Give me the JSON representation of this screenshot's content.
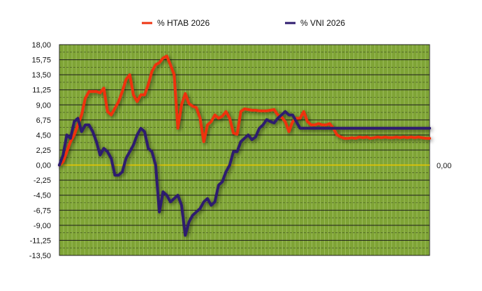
{
  "chart_data": {
    "type": "line",
    "legend": {
      "placement": "top",
      "items": [
        {
          "label": "% HTAB 2026",
          "color": "#ee3311"
        },
        {
          "label": "% VNI 2026",
          "color": "#2d1a6e"
        }
      ]
    },
    "y_ticks": [
      "18,00",
      "15,75",
      "13,50",
      "11,25",
      "9,00",
      "6,75",
      "4,50",
      "2,25",
      "0,00",
      "-2,25",
      "-4,50",
      "-6,75",
      "-9,00",
      "-11,25",
      "-13,50"
    ],
    "y_values": [
      18,
      15.75,
      13.5,
      11.25,
      9,
      6.75,
      4.5,
      2.25,
      0,
      -2.25,
      -4.5,
      -6.75,
      -9,
      -11.25,
      -13.5
    ],
    "ylim": [
      -13.5,
      18
    ],
    "xlim": [
      0,
      100
    ],
    "right_label": "0,00",
    "grid": true,
    "plot_background": "#7fa436",
    "zero_line_color": "#e8c800",
    "series": [
      {
        "name": "% HTAB 2026",
        "color": "#ee3311",
        "x": [
          0,
          1,
          2,
          3,
          4,
          5,
          6,
          7,
          8,
          9,
          10,
          11,
          12,
          13,
          14,
          15,
          16,
          17,
          18,
          19,
          20,
          21,
          22,
          23,
          24,
          25,
          26,
          27,
          28,
          29,
          30,
          31,
          32,
          33,
          34,
          35,
          36,
          37,
          38,
          39,
          40,
          41,
          42,
          43,
          44,
          45,
          46,
          47,
          48,
          49,
          50,
          51,
          52,
          53,
          54,
          55,
          56,
          57,
          58,
          59,
          60,
          61,
          62,
          63,
          64,
          65,
          66,
          67,
          68,
          69,
          70,
          71,
          72,
          73,
          74,
          75,
          76,
          77,
          78,
          79,
          80,
          81,
          82,
          83,
          84,
          85,
          86,
          87,
          88,
          89,
          90,
          91,
          92,
          93,
          94,
          95,
          96,
          97,
          98,
          99,
          100
        ],
        "y": [
          0,
          0.5,
          2,
          3.5,
          4.5,
          6,
          7.5,
          10,
          11,
          11,
          11,
          10.8,
          11.5,
          8,
          7.5,
          8.5,
          9.5,
          11,
          12.8,
          13.5,
          10.5,
          9.5,
          10.5,
          10.5,
          12,
          14,
          15,
          15.3,
          16,
          16.3,
          15,
          13.5,
          5.5,
          9,
          10.7,
          9.2,
          8.8,
          8.6,
          7,
          3.5,
          6,
          6.5,
          7.5,
          7,
          7.3,
          8,
          7,
          4.8,
          4.6,
          8,
          8.4,
          8.3,
          8.2,
          8.2,
          8.1,
          8.1,
          8.1,
          8.2,
          8.3,
          7.5,
          7.2,
          6.5,
          5,
          6.5,
          7,
          7,
          8,
          6.5,
          6,
          6,
          6.2,
          6,
          6,
          6.2,
          5.5,
          4.5,
          4.2,
          4,
          4,
          4.1,
          4,
          4.2,
          4.1,
          4.2,
          4,
          4.1,
          4.2,
          4.1,
          4.2,
          4.1,
          4.1,
          4.2,
          4.1,
          4.2,
          4.1,
          4.2,
          4.1,
          4.2,
          4.1,
          4,
          4
        ]
      },
      {
        "name": "% VNI 2026",
        "color": "#2d1a6e",
        "x": [
          0,
          1,
          2,
          3,
          4,
          5,
          6,
          7,
          8,
          9,
          10,
          11,
          12,
          13,
          14,
          15,
          16,
          17,
          18,
          19,
          20,
          21,
          22,
          23,
          24,
          25,
          26,
          27,
          28,
          29,
          30,
          31,
          32,
          33,
          34,
          35,
          36,
          37,
          38,
          39,
          40,
          41,
          42,
          43,
          44,
          45,
          46,
          47,
          48,
          49,
          50,
          51,
          52,
          53,
          54,
          55,
          56,
          57,
          58,
          59,
          60,
          61,
          62,
          63,
          64,
          65,
          66,
          67,
          68,
          69,
          70,
          71,
          72,
          73,
          74,
          75,
          76,
          77,
          78,
          79,
          80,
          81,
          82,
          83,
          84,
          85,
          86,
          87,
          88,
          89,
          90,
          91,
          92,
          93,
          94,
          95,
          96,
          97,
          98,
          99,
          100
        ],
        "y": [
          0,
          1.5,
          4.5,
          4,
          6.5,
          7,
          5,
          6,
          6,
          5,
          3.5,
          1.5,
          2.5,
          2,
          1,
          -1.5,
          -1.5,
          -1,
          1,
          2,
          3,
          4.5,
          5.5,
          5,
          2.5,
          2,
          0,
          -7,
          -4,
          -4.5,
          -5.5,
          -5,
          -4.5,
          -6,
          -10.5,
          -8.5,
          -7.5,
          -7,
          -6.5,
          -5.5,
          -5,
          -6,
          -5.5,
          -3,
          -2.5,
          -1,
          0,
          2,
          2,
          3.5,
          4,
          4.5,
          3.8,
          4.2,
          5.5,
          6,
          6.8,
          6.5,
          6.3,
          7,
          7.5,
          8,
          7.5,
          7.5,
          6.5,
          5.5,
          5.5,
          5.5,
          5.5,
          5.5,
          5.5,
          5.5,
          5.5,
          5.5,
          5.5,
          5.5,
          5.5,
          5.5,
          5.5,
          5.5,
          5.5,
          5.5,
          5.5,
          5.5,
          5.5,
          5.5,
          5.5,
          5.5,
          5.5,
          5.5,
          5.5,
          5.5,
          5.5,
          5.5,
          5.5,
          5.5,
          5.5,
          5.5,
          5.5,
          5.5,
          5.5
        ]
      }
    ]
  }
}
